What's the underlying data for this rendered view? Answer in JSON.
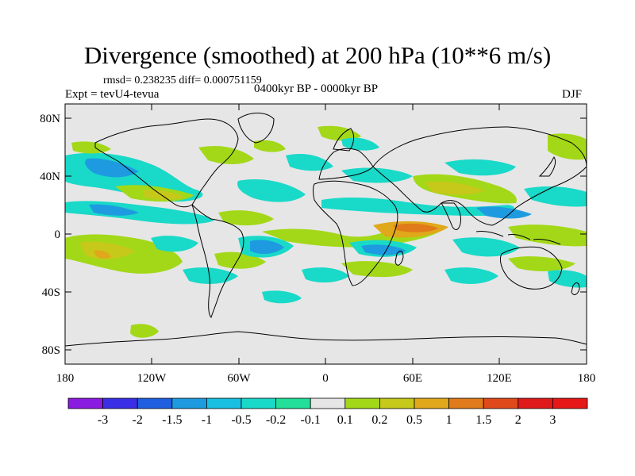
{
  "title": "Divergence (smoothed) at 200 hPa (10**6 m/s)",
  "stats": "rmsd= 0.238235 diff= 0.000751159",
  "left_label": "Expt = tevU4-tevua",
  "center_label": "0400kyr BP - 0000kyr BP",
  "right_label": "DJF",
  "map": {
    "projection": "cylindrical equidistant",
    "lon_range": [
      -180,
      180
    ],
    "lat_range": [
      -90,
      90
    ],
    "lat_ticks": [
      "80N",
      "40N",
      "0",
      "40S",
      "80S"
    ],
    "lon_ticks": [
      "180",
      "120W",
      "60W",
      "0",
      "60E",
      "120E",
      "180"
    ],
    "background_color": "#e6e6e6",
    "coastline_color": "#000000"
  },
  "colorbar": {
    "labels": [
      "-3",
      "-2",
      "-1.5",
      "-1",
      "-0.5",
      "-0.2",
      "-0.1",
      "0.1",
      "0.2",
      "0.5",
      "1",
      "1.5",
      "2",
      "3"
    ],
    "colors": [
      "#8a1be0",
      "#3a2fe6",
      "#1f5fe0",
      "#1e9be0",
      "#19bfe0",
      "#19d9c8",
      "#22e09a",
      "#e6e6e6",
      "#a3d818",
      "#c6c81a",
      "#e0a81a",
      "#e07a1a",
      "#e04a1a",
      "#e01a1a",
      "#e61818"
    ]
  }
}
